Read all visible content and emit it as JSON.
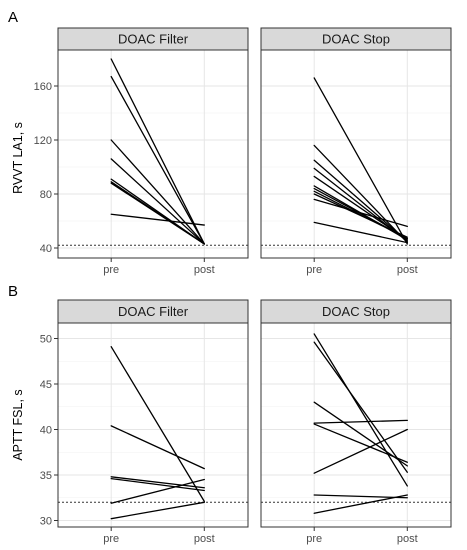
{
  "chart_data": [
    {
      "type": "line",
      "panel_label": "A",
      "ylabel": "RVVT LA1, s",
      "categories": [
        "pre",
        "post"
      ],
      "ylim": [
        40,
        180
      ],
      "yticks": [
        40,
        80,
        120,
        160
      ],
      "reference_line": 42,
      "facets": [
        {
          "title": "DOAC Filter",
          "lines": [
            [
              180,
              43
            ],
            [
              167,
              43
            ],
            [
              120,
              43
            ],
            [
              106,
              43
            ],
            [
              91,
              43
            ],
            [
              89,
              43
            ],
            [
              88,
              43
            ],
            [
              65,
              57
            ]
          ]
        },
        {
          "title": "DOAC Stop",
          "lines": [
            [
              166,
              43
            ],
            [
              116,
              44
            ],
            [
              105,
              45
            ],
            [
              99,
              45
            ],
            [
              93,
              46
            ],
            [
              86,
              46
            ],
            [
              84,
              47
            ],
            [
              82,
              47
            ],
            [
              80,
              48
            ],
            [
              76,
              56
            ],
            [
              59,
              44
            ]
          ]
        }
      ]
    },
    {
      "type": "line",
      "panel_label": "B",
      "ylabel": "APTT FSL, s",
      "categories": [
        "pre",
        "post"
      ],
      "ylim": [
        30,
        51
      ],
      "yticks": [
        30,
        35,
        40,
        45,
        50
      ],
      "reference_line": 32,
      "facets": [
        {
          "title": "DOAC Filter",
          "lines": [
            [
              49.1,
              32.1
            ],
            [
              40.4,
              35.7
            ],
            [
              34.8,
              33.6
            ],
            [
              34.6,
              33.3
            ],
            [
              31.9,
              34.5
            ],
            [
              30.2,
              32.0
            ]
          ]
        },
        {
          "title": "DOAC Stop",
          "lines": [
            [
              50.5,
              33.8
            ],
            [
              49.6,
              35.3
            ],
            [
              43.0,
              36.0
            ],
            [
              40.7,
              41.0
            ],
            [
              40.6,
              36.4
            ],
            [
              35.2,
              40.0
            ],
            [
              32.8,
              32.5
            ],
            [
              30.8,
              32.8
            ]
          ]
        }
      ]
    }
  ]
}
